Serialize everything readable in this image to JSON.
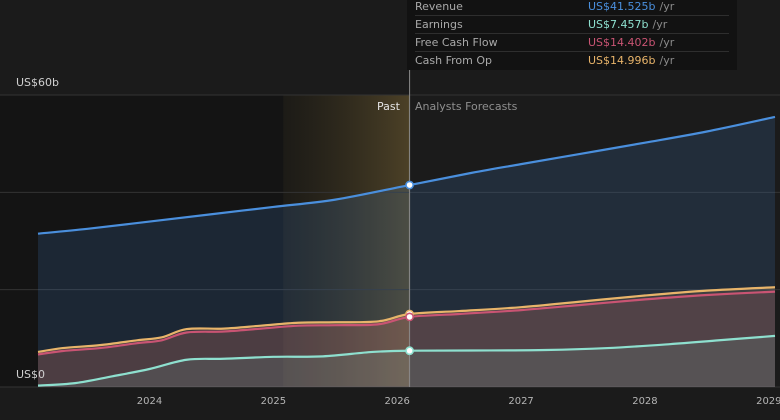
{
  "chart_data": {
    "type": "area",
    "y_axis": {
      "top_label": "US$60b",
      "bottom_label": "US$0",
      "ylim": [
        0,
        60
      ]
    },
    "x_axis": {
      "tick_labels": [
        "2024",
        "2025",
        "2026",
        "2027",
        "2028",
        "2029"
      ],
      "xlim": [
        2023.1,
        2029.05
      ]
    },
    "past_label": "Past",
    "forecast_label": "Analysts Forecasts",
    "divider_x": 2026.1,
    "highlight_start_x": 2025.08,
    "series": [
      {
        "name": "Revenue",
        "color": "#4a8fdd",
        "x": [
          2023.1,
          2023.5,
          2024.0,
          2024.5,
          2025.0,
          2025.5,
          2026.1,
          2026.6,
          2027.0,
          2027.5,
          2028.0,
          2028.5,
          2029.05
        ],
        "y": [
          31.5,
          32.5,
          34.0,
          35.5,
          37.0,
          38.5,
          41.5,
          44.0,
          45.8,
          48.0,
          50.2,
          52.5,
          55.5
        ]
      },
      {
        "name": "Cash From Op",
        "color": "#e8b46a",
        "x": [
          2023.1,
          2023.3,
          2023.6,
          2023.9,
          2024.1,
          2024.3,
          2024.6,
          2024.9,
          2025.2,
          2025.5,
          2025.85,
          2026.1,
          2026.5,
          2027.0,
          2027.5,
          2028.0,
          2028.5,
          2029.05
        ],
        "y": [
          7.2,
          8.0,
          8.6,
          9.6,
          10.2,
          11.9,
          12.0,
          12.6,
          13.2,
          13.3,
          13.5,
          14.996,
          15.6,
          16.4,
          17.6,
          18.8,
          19.8,
          20.5
        ]
      },
      {
        "name": "Free Cash Flow",
        "color": "#c95473",
        "x": [
          2023.1,
          2023.3,
          2023.6,
          2023.9,
          2024.1,
          2024.3,
          2024.6,
          2024.9,
          2025.2,
          2025.5,
          2025.85,
          2026.1,
          2026.5,
          2027.0,
          2027.5,
          2028.0,
          2028.5,
          2029.05
        ],
        "y": [
          6.7,
          7.4,
          8.0,
          9.0,
          9.6,
          11.2,
          11.4,
          12.0,
          12.6,
          12.7,
          12.9,
          14.402,
          15.0,
          15.8,
          16.9,
          18.0,
          18.9,
          19.6
        ]
      },
      {
        "name": "Earnings",
        "color": "#8ee0cf",
        "x": [
          2023.1,
          2023.4,
          2023.7,
          2024.0,
          2024.3,
          2024.6,
          2025.0,
          2025.4,
          2025.8,
          2026.1,
          2026.6,
          2027.2,
          2027.7,
          2028.2,
          2028.6,
          2029.05
        ],
        "y": [
          0.3,
          0.8,
          2.2,
          3.7,
          5.6,
          5.8,
          6.2,
          6.3,
          7.2,
          7.457,
          7.5,
          7.6,
          8.0,
          8.8,
          9.6,
          10.5
        ]
      }
    ]
  },
  "tooltip": {
    "rows": [
      {
        "name": "Revenue",
        "value": "US$41.525b",
        "unit": "/yr",
        "color": "#4a8fdd"
      },
      {
        "name": "Earnings",
        "value": "US$7.457b",
        "unit": "/yr",
        "color": "#8ee0cf"
      },
      {
        "name": "Free Cash Flow",
        "value": "US$14.402b",
        "unit": "/yr",
        "color": "#c95473"
      },
      {
        "name": "Cash From Op",
        "value": "US$14.996b",
        "unit": "/yr",
        "color": "#e8b46a"
      }
    ]
  }
}
